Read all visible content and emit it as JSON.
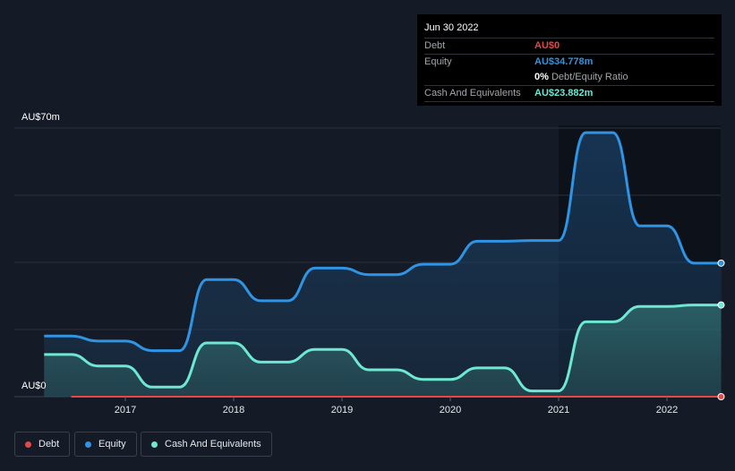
{
  "tooltip": {
    "date": "Jun 30 2022",
    "debt_label": "Debt",
    "debt_value": "AU$0",
    "equity_label": "Equity",
    "equity_value": "AU$34.778m",
    "ratio_value": "0%",
    "ratio_label": "Debt/Equity Ratio",
    "cash_label": "Cash And Equivalents",
    "cash_value": "AU$23.882m"
  },
  "colors": {
    "debt": "#e64848",
    "equity": "#2f94e4",
    "cash": "#6ee8d2",
    "background": "#151b26"
  },
  "chart_data": {
    "type": "area",
    "title": "",
    "ylim": [
      0,
      70
    ],
    "y_unit": "AU$m",
    "y_tick_labels": [
      "AU$0",
      "AU$70m"
    ],
    "x_tick_labels": [
      "2017",
      "2018",
      "2019",
      "2020",
      "2021",
      "2022"
    ],
    "x": [
      2016.25,
      2016.5,
      2016.75,
      2017.0,
      2017.25,
      2017.5,
      2017.75,
      2018.0,
      2018.25,
      2018.5,
      2018.75,
      2019.0,
      2019.25,
      2019.5,
      2019.75,
      2020.0,
      2020.25,
      2020.5,
      2020.75,
      2021.0,
      2021.25,
      2021.5,
      2021.75,
      2022.0,
      2022.25,
      2022.5
    ],
    "series": [
      {
        "name": "Debt",
        "values": [
          null,
          0,
          0,
          0,
          0,
          0,
          0,
          0,
          0,
          0,
          0,
          0,
          0,
          0,
          0,
          0,
          0,
          0,
          0,
          0,
          0,
          0,
          0,
          0,
          0,
          0
        ]
      },
      {
        "name": "Equity",
        "values": [
          15.8,
          15.8,
          14.5,
          14.5,
          12.0,
          12.0,
          30.5,
          30.5,
          25.0,
          25.0,
          33.5,
          33.5,
          31.8,
          31.8,
          34.5,
          34.5,
          40.5,
          40.5,
          40.7,
          40.7,
          68.8,
          68.8,
          44.5,
          44.5,
          34.8,
          34.8
        ]
      },
      {
        "name": "Cash And Equivalents",
        "values": [
          11.0,
          11.0,
          8.0,
          8.0,
          2.5,
          2.5,
          14.0,
          14.0,
          9.0,
          9.0,
          12.3,
          12.3,
          7.0,
          7.0,
          4.5,
          4.5,
          7.5,
          7.5,
          1.5,
          1.5,
          19.5,
          19.5,
          23.5,
          23.5,
          23.9,
          23.9
        ]
      }
    ],
    "legend": [
      "Debt",
      "Equity",
      "Cash And Equivalents"
    ],
    "legend_position": "bottom-left",
    "grid": true
  }
}
